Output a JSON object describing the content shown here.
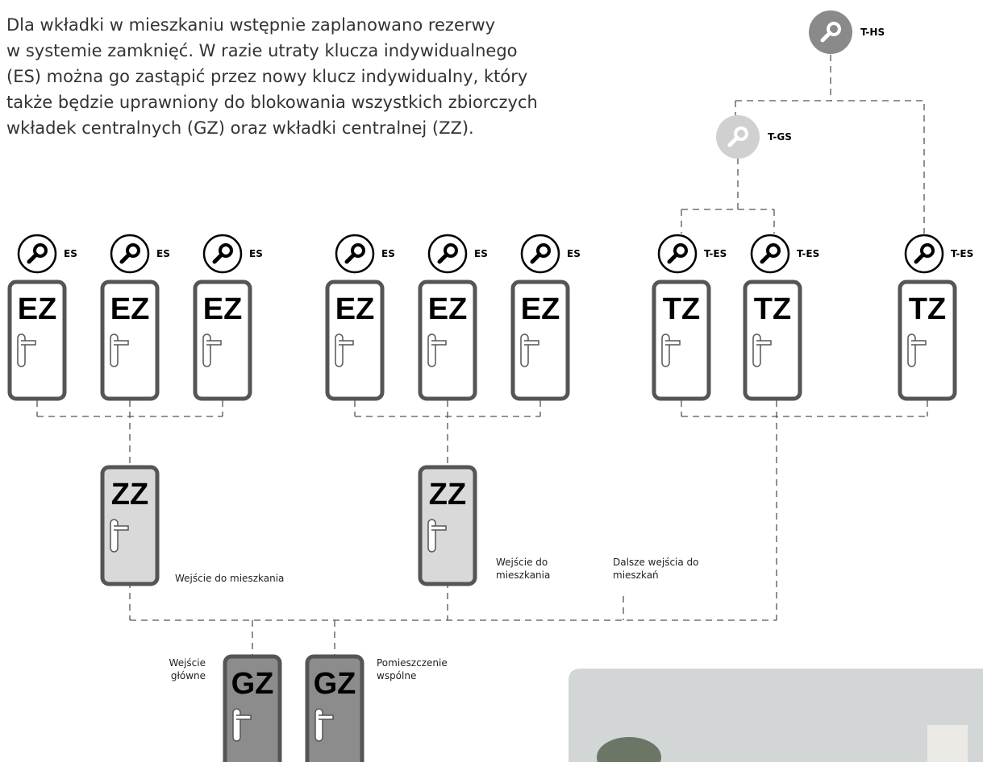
{
  "intro": {
    "lines": [
      "Dla wkładki w mieszkaniu wstępnie zaplanowano rezerwy",
      "w systemie zamknięć. W razie utraty klucza indywidualnego",
      "(ES) można go zastąpić przez nowy klucz indywidualny, który",
      "także będzie uprawniony do blokowania wszystkich zbiorczych",
      "wkładek centralnych (GZ) oraz wkładki centralnej (ZZ)."
    ]
  },
  "keys": [
    {
      "label": "T-HS"
    },
    {
      "label": "T-GS"
    },
    {
      "label": "ES"
    },
    {
      "label": "ES"
    },
    {
      "label": "ES"
    },
    {
      "label": "ES"
    },
    {
      "label": "ES"
    },
    {
      "label": "ES"
    },
    {
      "label": "T-ES"
    },
    {
      "label": "T-ES"
    },
    {
      "label": "T-ES"
    }
  ],
  "doors": [
    {
      "label": "EZ"
    },
    {
      "label": "EZ"
    },
    {
      "label": "EZ"
    },
    {
      "label": "EZ"
    },
    {
      "label": "EZ"
    },
    {
      "label": "EZ"
    },
    {
      "label": "TZ"
    },
    {
      "label": "TZ"
    },
    {
      "label": "TZ"
    },
    {
      "label": "ZZ"
    },
    {
      "label": "ZZ"
    },
    {
      "label": "GZ"
    },
    {
      "label": "GZ"
    }
  ],
  "captions": [
    {
      "lines": [
        "Wejście do mieszkania"
      ]
    },
    {
      "lines": [
        "Wejście do",
        "mieszkania"
      ]
    },
    {
      "lines": [
        "Dalsze wejścia do",
        "mieszkań"
      ]
    },
    {
      "lines": [
        "Wejście",
        "główne"
      ]
    },
    {
      "lines": [
        "Pomieszczenie",
        "wspólne"
      ]
    }
  ]
}
